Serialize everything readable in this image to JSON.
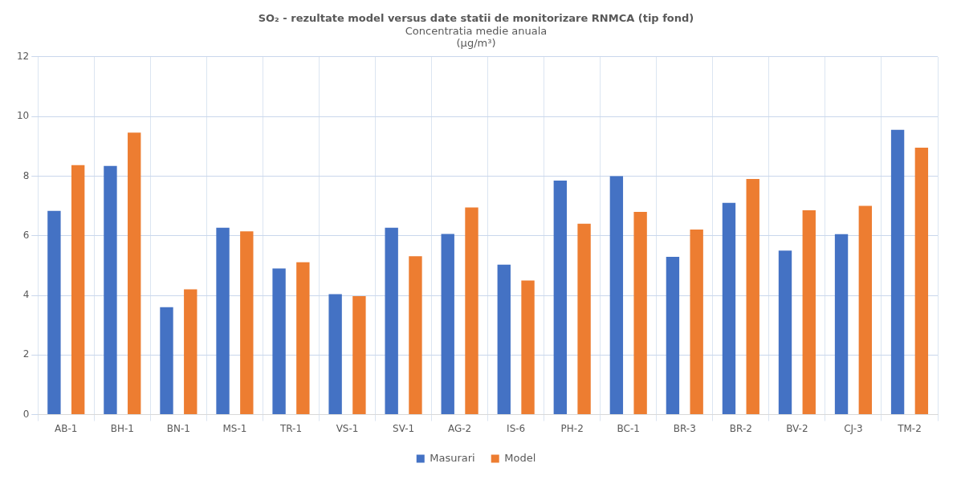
{
  "chart_data": {
    "type": "bar",
    "title": "SO₂ - rezultate model versus date statii de monitorizare RNMCA (tip fond)",
    "subtitle": "Concentratia medie anuala\n(µg/m³)",
    "categories": [
      "AB-1",
      "BH-1",
      "BN-1",
      "MS-1",
      "TR-1",
      "VS-1",
      "SV-1",
      "AG-2",
      "IS-6",
      "PH-2",
      "BC-1",
      "BR-3",
      "BR-2",
      "BV-2",
      "CJ-3",
      "TM-2"
    ],
    "series": [
      {
        "name": "Masurari",
        "color": "#4472c4",
        "values": [
          6.83,
          8.34,
          3.6,
          6.27,
          4.9,
          4.04,
          6.27,
          6.06,
          5.03,
          7.85,
          8.0,
          5.29,
          7.1,
          5.5,
          6.05,
          9.55
        ]
      },
      {
        "name": "Model",
        "color": "#ed7d31",
        "values": [
          8.37,
          9.46,
          4.2,
          6.15,
          5.11,
          3.97,
          5.31,
          6.95,
          4.5,
          6.4,
          6.8,
          6.21,
          7.9,
          6.85,
          7.0,
          8.95
        ]
      }
    ],
    "ylim": [
      0,
      12
    ],
    "yticks": [
      0,
      2,
      4,
      6,
      8,
      10,
      12
    ],
    "grid": true,
    "legend": "bottom"
  }
}
